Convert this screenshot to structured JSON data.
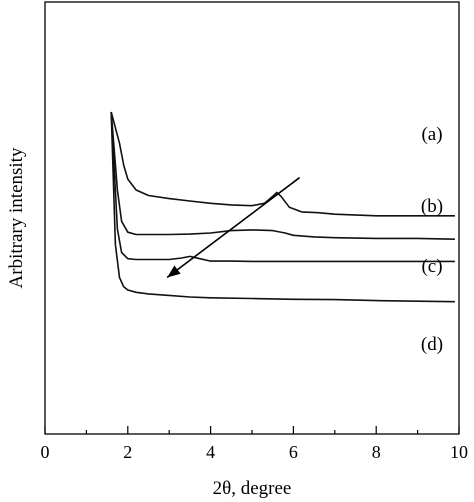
{
  "chart_data": {
    "type": "line",
    "xlabel": "2θ, degree",
    "ylabel": "Arbitrary intensity",
    "xlim": [
      0,
      10
    ],
    "x_ticks": [
      "0",
      "2",
      "4",
      "6",
      "8",
      "10"
    ],
    "y_ticks": [],
    "grid": false,
    "legend": "none",
    "series": [
      {
        "name": "(a)",
        "x": [
          1.6,
          1.8,
          1.9,
          2.0,
          2.2,
          2.5,
          3.0,
          3.5,
          4.0,
          4.5,
          5.0,
          5.3,
          5.5,
          5.6,
          5.7,
          5.9,
          6.2,
          6.6,
          7.0,
          8.0,
          9.0,
          9.9
        ],
        "y": [
          100,
          80,
          66,
          57,
          50,
          46.5,
          44.5,
          43,
          41.5,
          40.5,
          40,
          41.5,
          46,
          48.5,
          46,
          39,
          36,
          35.5,
          34.5,
          33.5,
          33.5,
          33.5
        ]
      },
      {
        "name": "(b)",
        "x": [
          1.6,
          1.75,
          1.85,
          2.0,
          2.2,
          2.5,
          3.0,
          3.5,
          4.0,
          4.5,
          5.0,
          5.5,
          5.8,
          6.0,
          6.5,
          7.0,
          8.0,
          9.0,
          9.9
        ],
        "y": [
          100,
          50,
          30,
          23,
          21.5,
          21.5,
          21.5,
          21.8,
          22.5,
          24,
          24.5,
          24,
          22.5,
          21,
          20,
          19.5,
          19,
          19,
          18.5
        ]
      },
      {
        "name": "(c)",
        "x": [
          1.6,
          1.75,
          1.85,
          2.0,
          2.2,
          2.5,
          3.0,
          3.3,
          3.5,
          3.7,
          4.0,
          4.5,
          5.0,
          6.0,
          7.0,
          8.0,
          9.0,
          9.9
        ],
        "y": [
          100,
          25,
          10,
          6,
          5.5,
          5.5,
          5.5,
          6.5,
          7.5,
          6.3,
          4.5,
          4.5,
          4.3,
          4.3,
          4.3,
          4.3,
          4.3,
          4.3
        ]
      },
      {
        "name": "(d)",
        "x": [
          1.6,
          1.7,
          1.8,
          1.9,
          2.0,
          2.2,
          2.5,
          3.0,
          3.5,
          4.0,
          5.0,
          6.0,
          7.0,
          8.0,
          9.0,
          9.9
        ],
        "y": [
          100,
          15,
          -6,
          -12,
          -14,
          -15.5,
          -16.5,
          -17.5,
          -18.5,
          -19,
          -19.5,
          -20,
          -20.2,
          -20.8,
          -21.2,
          -21.5
        ]
      }
    ],
    "series_labels": [
      "(a)",
      "(b)",
      "(c)",
      "(d)"
    ],
    "annotations": [
      {
        "type": "arrow",
        "from": [
          6.15,
          58
        ],
        "to": [
          2.95,
          -6
        ]
      }
    ]
  }
}
